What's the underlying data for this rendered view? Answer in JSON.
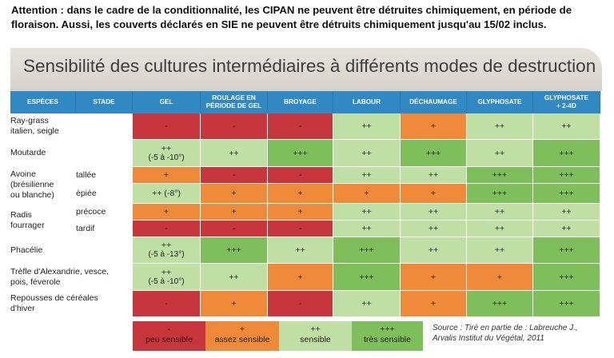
{
  "notice": {
    "line1": "Attention : dans le cadre de la conditionnalité, les CIPAN ne peuvent être détruites chimiquement, en période de",
    "line2": "floraison. Aussi, les couverts déclarés en SIE ne peuvent être détruits chimiquement jusqu'au 15/02 inclus."
  },
  "title": "Sensibilité des cultures intermédiaires à différents modes de destruction",
  "columns": {
    "especes": "ESPÈCES",
    "stade": "STADE",
    "gel": "GEL",
    "roulage_1": "ROULAGE EN",
    "roulage_2": "PÉRIODE DE GEL",
    "broyage": "BROYAGE",
    "labour": "LABOUR",
    "dechaumage": "DÉCHAUMAGE",
    "glyphosate": "GLYPHOSATE",
    "glyphosate24d_1": "GLYPHOSATE",
    "glyphosate24d_2": "+ 2-4D"
  },
  "rows": {
    "raygrass": {
      "species_1": "Ray-grass",
      "species_2": "italien, seigle",
      "gel": "-",
      "roulage": "-",
      "broyage": "-",
      "labour": "++",
      "dechaumage": "+",
      "glyphosate": "++",
      "glypho24d": "++"
    },
    "moutarde": {
      "species": "Moutarde",
      "gel": "++",
      "gel_sub": "(-5 à -10°)",
      "roulage": "++",
      "broyage": "+++",
      "labour": "++",
      "dechaumage": "+++",
      "glyphosate": "++",
      "glypho24d": "+++"
    },
    "avoine": {
      "species_1": "Avoine",
      "species_2": "(brésilienne",
      "species_3": "ou blanche)"
    },
    "avoine_tallee": {
      "stade": "tallée",
      "gel": "+",
      "roulage": "-",
      "broyage": "-",
      "labour": "++",
      "dechaumage": "++",
      "glyphosate": "+++",
      "glypho24d": "+++"
    },
    "avoine_epiee": {
      "stade": "épiée",
      "gel": "++ (-8°)",
      "roulage": "+",
      "broyage": "+",
      "labour": "+",
      "dechaumage": "+",
      "glyphosate": "+++",
      "glypho24d": "+++"
    },
    "radis": {
      "species_1": "Radis",
      "species_2": "fourrager"
    },
    "radis_precoce": {
      "stade": "précoce",
      "gel": "+",
      "roulage": "+",
      "broyage": "+",
      "labour": "++",
      "dechaumage": "++",
      "glyphosate": "++",
      "glypho24d": "++"
    },
    "radis_tardif": {
      "stade": "tardif",
      "gel": "-",
      "roulage": "-",
      "broyage": "-",
      "labour": "++",
      "dechaumage": "++",
      "glyphosate": "++",
      "glypho24d": "++"
    },
    "phacelie": {
      "species": "Phacélie",
      "gel": "++",
      "gel_sub": "(-5 à -13°)",
      "roulage": "+++",
      "broyage": "++",
      "labour": "+++",
      "dechaumage": "++",
      "glyphosate": "++",
      "glypho24d": "+++"
    },
    "trefle": {
      "species_1": "Trèfle d'Alexandrie, vesce,",
      "species_2": "pois, féverole",
      "gel": "++",
      "gel_sub": "(-5 à -10°)",
      "roulage": "++",
      "broyage": "+",
      "labour": "+++",
      "dechaumage": "+",
      "glyphosate": "+",
      "glypho24d": "+++"
    },
    "repousses": {
      "species_1": "Repousses de céréales",
      "species_2": "d'hiver",
      "gel": "-",
      "roulage": "+",
      "broyage": "-",
      "labour": "++",
      "dechaumage": "+",
      "glyphosate": "+++",
      "glypho24d": "+++"
    }
  },
  "legend": {
    "red": {
      "symbol": "-",
      "label": "peu sensible"
    },
    "orange": {
      "symbol": "+",
      "label": "assez sensible"
    },
    "light": {
      "symbol": "++",
      "label": "sensible"
    },
    "dark": {
      "symbol": "+++",
      "label": "très sensible"
    }
  },
  "source": {
    "line1": "Source : Tiré en partie de : Labreuche J.,",
    "line2": "Arvalis Institut du Végétal, 2011"
  },
  "colors": {
    "red": "#c8363d",
    "orange": "#ef8a3a",
    "light_green": "#bfdfa5",
    "dark_green": "#7ebe5b",
    "header_blue": "#3189c4"
  }
}
